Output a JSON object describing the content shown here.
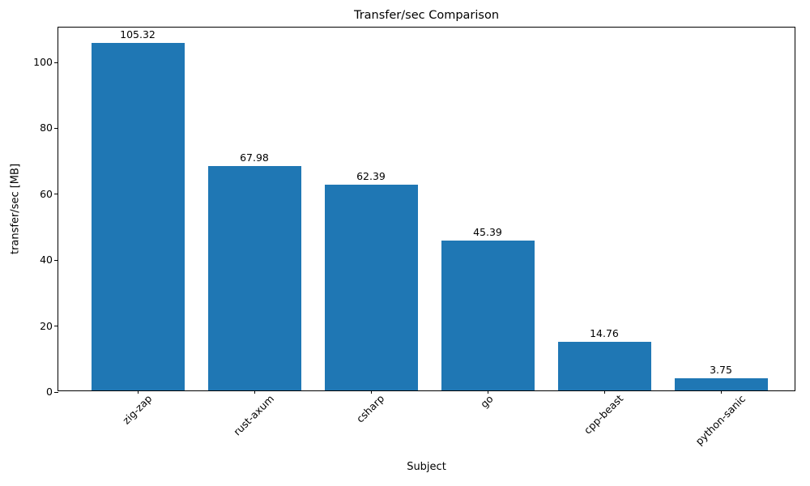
{
  "chart_data": {
    "type": "bar",
    "title": "Transfer/sec Comparison",
    "xlabel": "Subject",
    "ylabel": "transfer/sec [MB]",
    "categories": [
      "zig-zap",
      "rust-axum",
      "csharp",
      "go",
      "cpp-beast",
      "python-sanic"
    ],
    "values": [
      105.32,
      67.98,
      62.39,
      45.39,
      14.76,
      3.75
    ],
    "bar_labels": [
      "105.32",
      "67.98",
      "62.39",
      "45.39",
      "14.76",
      "3.75"
    ],
    "y_ticks": [
      0,
      20,
      40,
      60,
      80,
      100
    ],
    "ylim": [
      0,
      110.59
    ],
    "xlim_note": "categorical, 6 bars, bar width 0.8",
    "bar_color": "#1f77b4",
    "x_tick_rotation_deg": 45,
    "grid": false,
    "legend": "none",
    "background_color": "#ffffff",
    "spine_color": "#000000"
  }
}
